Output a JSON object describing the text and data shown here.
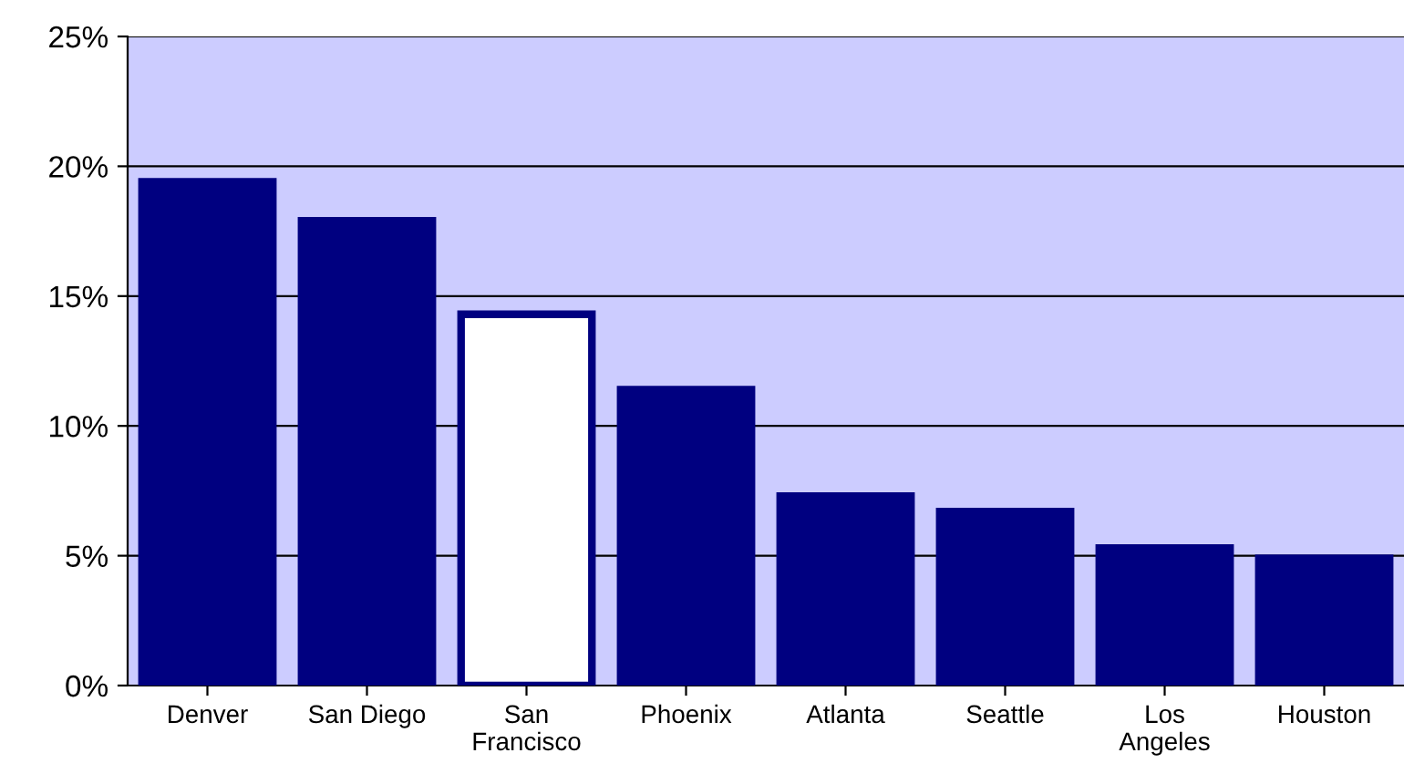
{
  "chart_data": {
    "type": "bar",
    "categories": [
      "Denver",
      "San Diego",
      "San\nFrancisco",
      "Phoenix",
      "Atlanta",
      "Seattle",
      "Los\nAngeles",
      "Houston"
    ],
    "values": [
      19.4,
      17.9,
      14.3,
      11.4,
      7.3,
      6.7,
      5.3,
      4.9
    ],
    "color": "#000080",
    "colors": [
      "#000080",
      "#000080",
      "#ffffff",
      "#000080",
      "#000080",
      "#000080",
      "#000080",
      "#000080"
    ],
    "ylim": [
      0,
      25
    ],
    "yticks": [
      {
        "value": 0,
        "label": "0%"
      },
      {
        "value": 5,
        "label": "5%"
      },
      {
        "value": 10,
        "label": "10%"
      },
      {
        "value": 15,
        "label": "15%"
      },
      {
        "value": 20,
        "label": "20%"
      },
      {
        "value": 25,
        "label": "25%"
      }
    ],
    "grid": "y"
  }
}
